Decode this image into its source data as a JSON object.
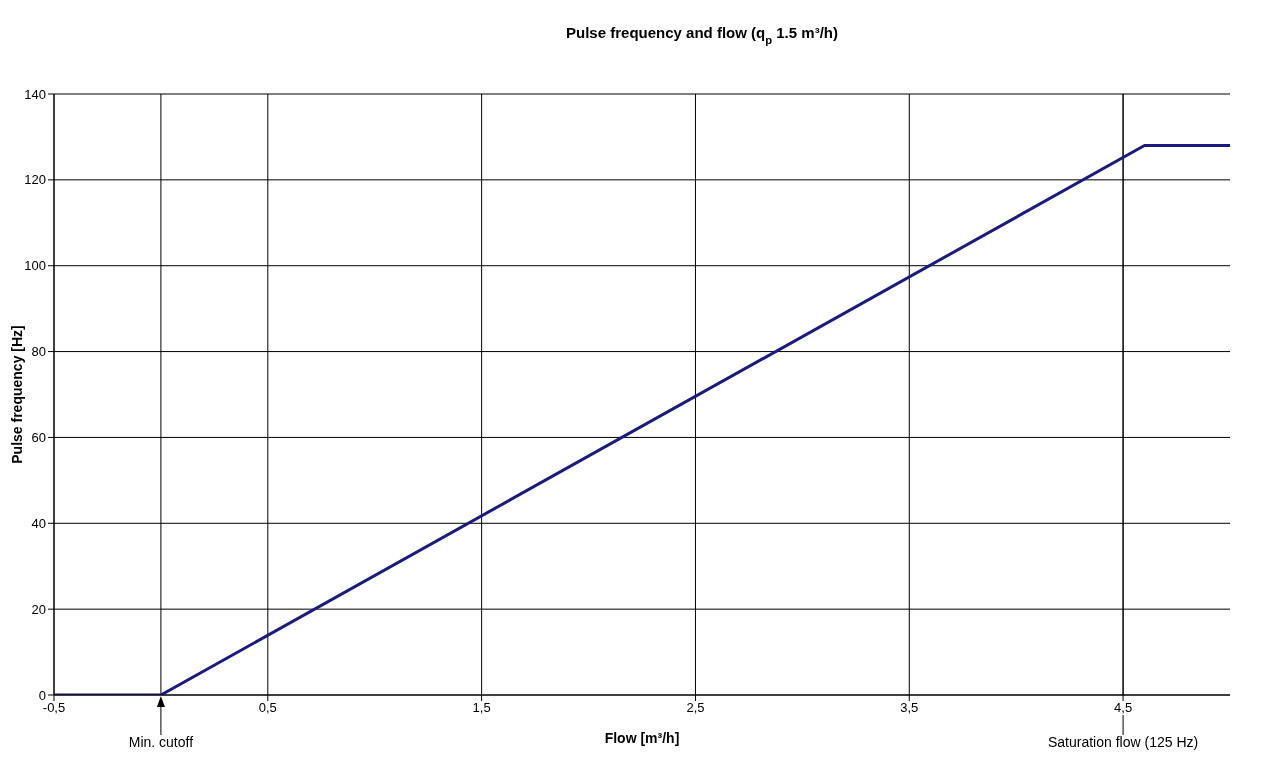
{
  "chart_data": {
    "type": "line",
    "title": "Pulse frequency and flow (q$_{p}$ 1.5 m³/h)",
    "xlabel": "Flow [m³/h]",
    "ylabel": "Pulse frequency [Hz]",
    "x": [
      -0.5,
      0,
      4.6,
      5.0
    ],
    "series": [
      {
        "color": "#1a1a80",
        "values": [
          0,
          0,
          128,
          128
        ]
      }
    ],
    "xlim": [
      -0.5,
      5.0
    ],
    "xticks": [
      {
        "value": -0.5,
        "label": "-0,5"
      },
      {
        "value": 0.5,
        "label": "0,5"
      },
      {
        "value": 1.5,
        "label": "1,5"
      },
      {
        "value": 2.5,
        "label": "2,5"
      },
      {
        "value": 3.5,
        "label": "3,5"
      },
      {
        "value": 4.5,
        "label": "4,5"
      }
    ],
    "ylim": [
      0,
      140
    ],
    "yticks": [
      0,
      20,
      40,
      60,
      80,
      100,
      120,
      140
    ],
    "grid": true,
    "legend": false,
    "marker": "none",
    "line_style": "solid",
    "annotations": [
      {
        "text": "Min. cutoff",
        "x": 0,
        "y": 0
      }
    ],
    "ref_lines": [
      {
        "axis": "x",
        "value": 0,
        "color": "#000000"
      },
      {
        "axis": "x",
        "value": 4.5,
        "label": "Saturation flow (125 Hz)",
        "color": "#000000"
      }
    ]
  }
}
